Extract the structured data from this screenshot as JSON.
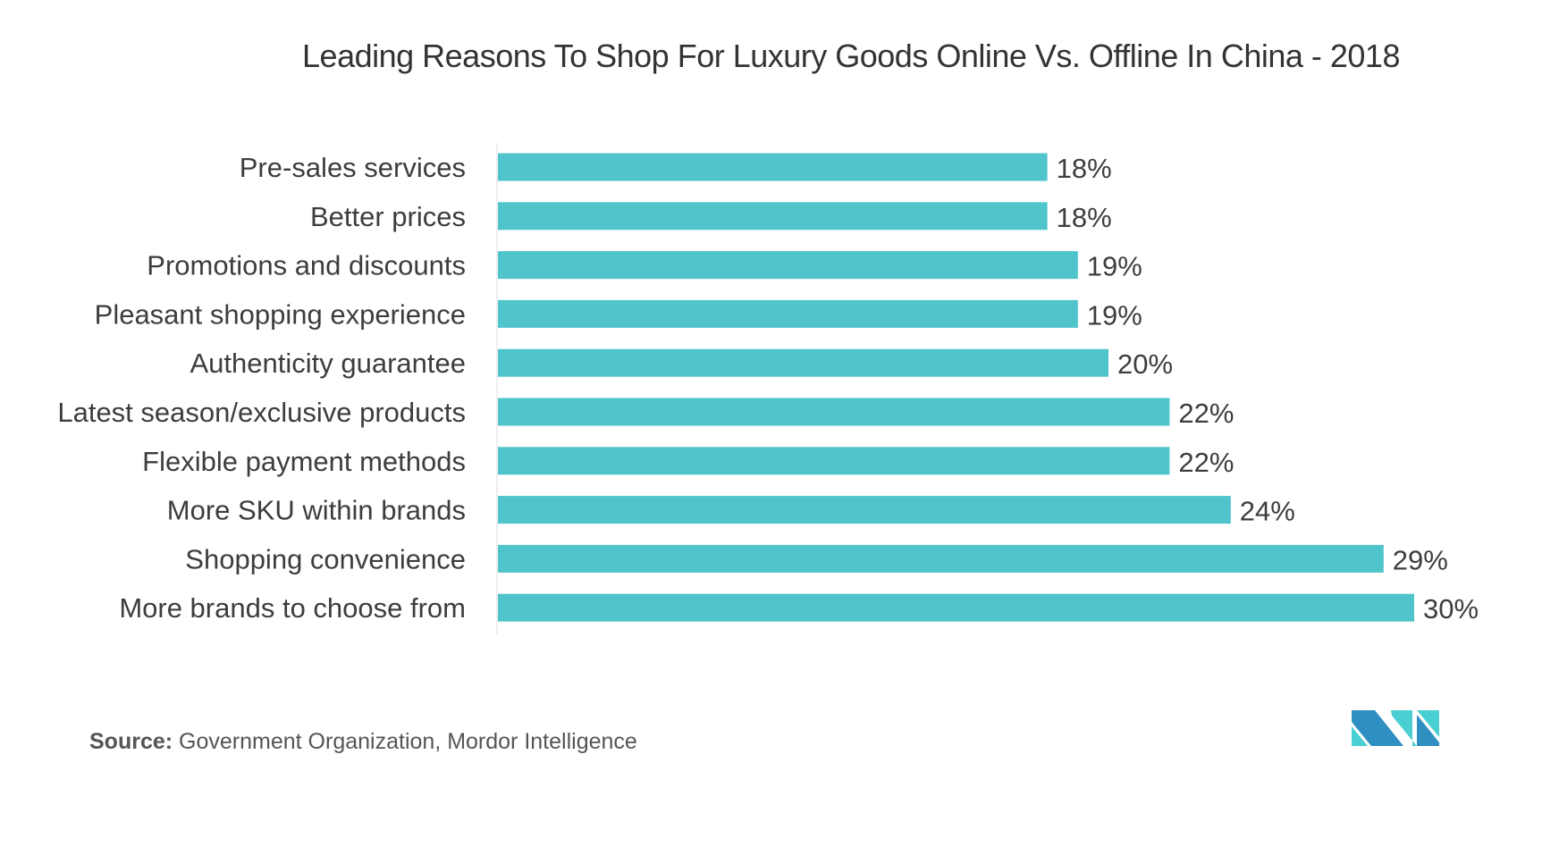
{
  "chart_data": {
    "type": "bar",
    "orientation": "horizontal",
    "title": "Leading Reasons To Shop For Luxury Goods Online Vs. Offline In China - 2018",
    "categories": [
      "Pre-sales services",
      "Better prices",
      "Promotions and discounts",
      "Pleasant shopping experience",
      "Authenticity guarantee",
      "Latest season/exclusive products",
      "Flexible payment methods",
      "More SKU within brands",
      "Shopping convenience",
      "More brands to choose from"
    ],
    "values": [
      18,
      18,
      19,
      19,
      20,
      22,
      22,
      24,
      29,
      30
    ],
    "data_labels": [
      "18%",
      "18%",
      "19%",
      "19%",
      "20%",
      "22%",
      "22%",
      "24%",
      "29%",
      "30%"
    ],
    "xlim": [
      0,
      30
    ],
    "grid": false,
    "bar_color": "#4FC4CA"
  },
  "source": {
    "label": "Source:",
    "text": "Government Organization, Mordor Intelligence"
  },
  "logo": {
    "text": "MI",
    "colors": [
      "#2E8FC0",
      "#4ACFD3"
    ]
  }
}
